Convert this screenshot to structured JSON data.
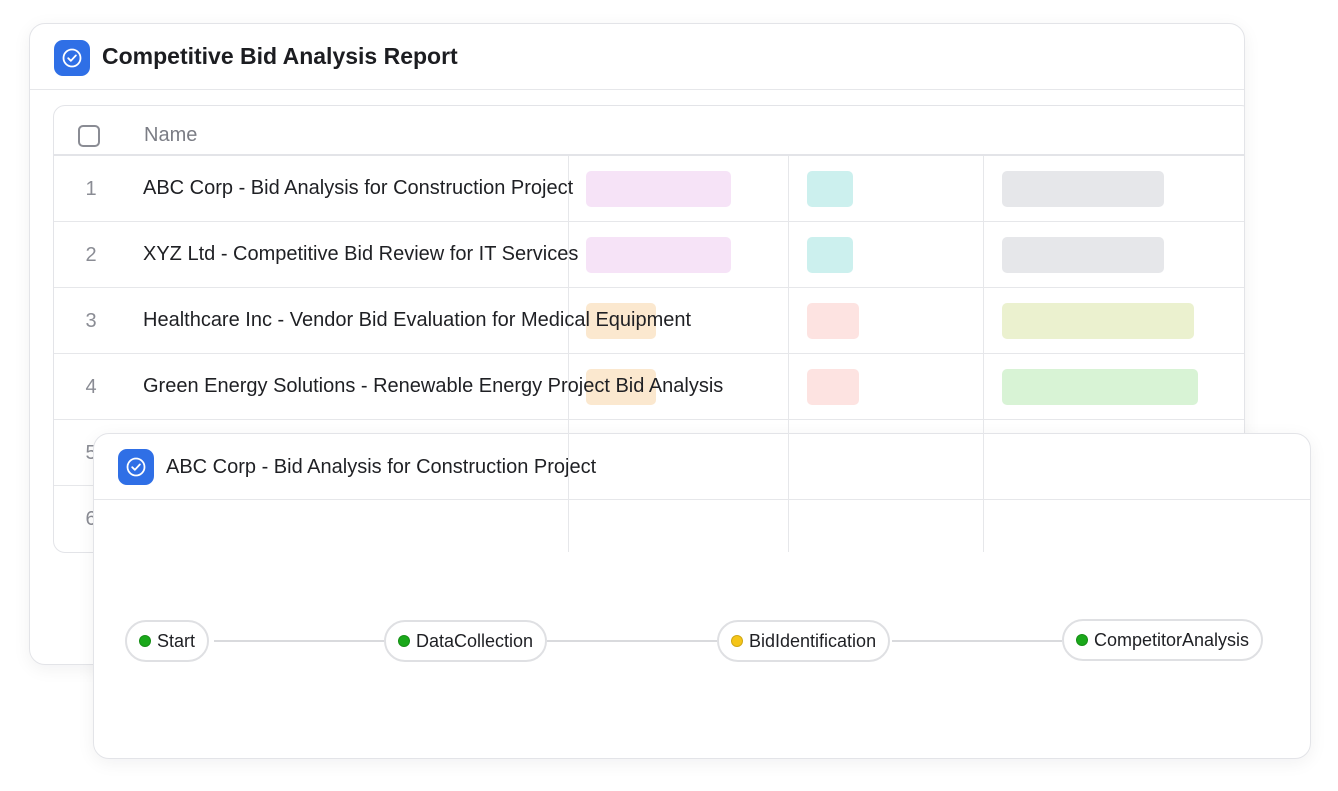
{
  "report": {
    "title": "Competitive Bid Analysis Report",
    "column_name_label": "Name",
    "rows": [
      {
        "num": "1",
        "name": "ABC Corp - Bid Analysis for Construction Project"
      },
      {
        "num": "2",
        "name": "XYZ Ltd - Competitive Bid Review for IT Services"
      },
      {
        "num": "3",
        "name": "Healthcare Inc - Vendor Bid Evaluation for Medical Equipment"
      },
      {
        "num": "4",
        "name": "Green Energy Solutions - Renewable Energy Project Bid Analysis"
      },
      {
        "num": "5",
        "name": ""
      },
      {
        "num": "6",
        "name": ""
      }
    ],
    "tag_colors": {
      "pink": "#f6e3f7",
      "peach": "#fbe8cf",
      "teal": "#ccf0ee",
      "salmon": "#fde3e1",
      "gray": "#e6e7ea",
      "olive": "#ebf1cf",
      "green": "#d8f3d5"
    }
  },
  "detail": {
    "title": "ABC Corp - Bid Analysis for Construction Project",
    "workflow": [
      {
        "label": "Start",
        "status": "complete",
        "color": "#1aa81a"
      },
      {
        "label": "DataCollection",
        "status": "complete",
        "color": "#1aa81a"
      },
      {
        "label": "BidIdentification",
        "status": "in-progress",
        "color": "#f5c518"
      },
      {
        "label": "CompetitorAnalysis",
        "status": "complete",
        "color": "#1aa81a"
      }
    ]
  },
  "brand": {
    "accent": "#2f6fe6"
  }
}
